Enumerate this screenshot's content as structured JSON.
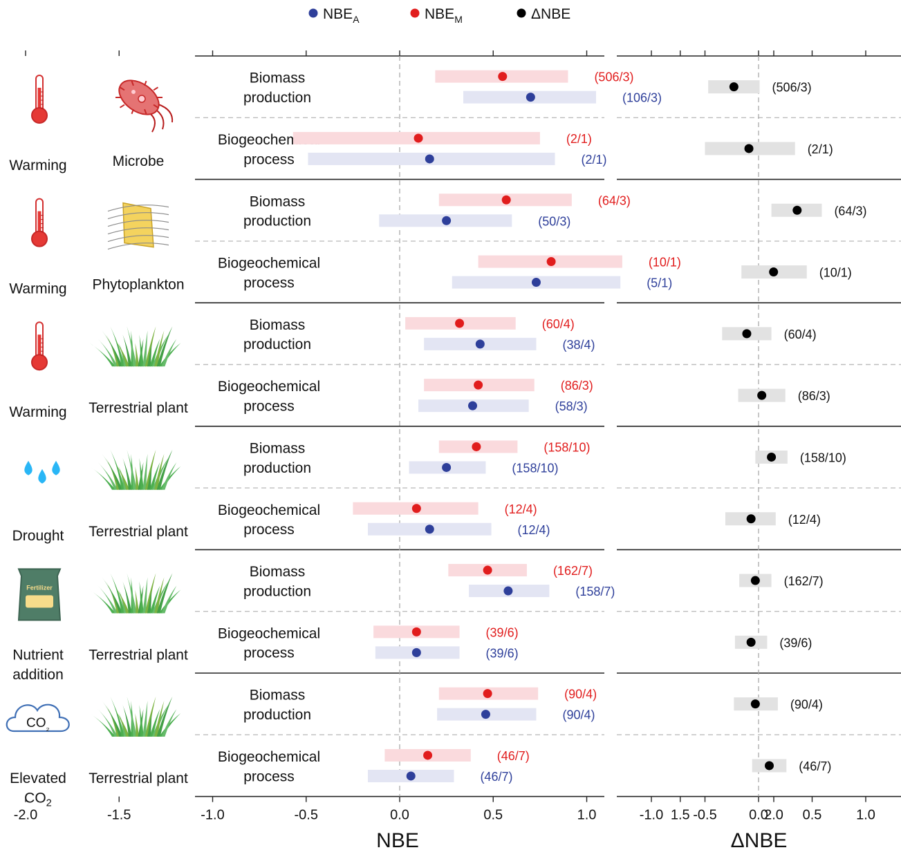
{
  "legend": {
    "items": [
      {
        "base": "NBE",
        "sub": "A",
        "color": "#2e3f9a"
      },
      {
        "base": "NBE",
        "sub": "M",
        "color": "#e11d1d"
      },
      {
        "base": "ΔNBE",
        "sub": "",
        "color": "#000000"
      }
    ]
  },
  "groups": [
    {
      "stressor_lines": [
        "Warming"
      ],
      "organism_lines": [
        "Microbe"
      ],
      "stressor_icon": "thermometer-icon",
      "organism_icon": "bacterium-icon"
    },
    {
      "stressor_lines": [
        "Warming"
      ],
      "organism_lines": [
        "Phytoplankton"
      ],
      "stressor_icon": "thermometer-icon",
      "organism_icon": "phytoplankton-icon"
    },
    {
      "stressor_lines": [
        "Warming"
      ],
      "organism_lines": [
        "Terrestrial plant"
      ],
      "stressor_icon": "thermometer-icon",
      "organism_icon": "grass-icon"
    },
    {
      "stressor_lines": [
        "Drought"
      ],
      "organism_lines": [
        "Terrestrial plant"
      ],
      "stressor_icon": "water-drops-icon",
      "organism_icon": "grass-icon"
    },
    {
      "stressor_lines": [
        "Nutrient",
        "addition"
      ],
      "organism_lines": [
        "Terrestrial plant"
      ],
      "stressor_icon": "fertilizer-bag-icon",
      "organism_icon": "grass-icon",
      "stressor_icon_text": "Fertilizer"
    },
    {
      "stressor_lines": [
        "Elevated",
        "CO₂"
      ],
      "organism_lines": [
        "Terrestrial plant"
      ],
      "stressor_icon": "co2-cloud-icon",
      "organism_icon": "grass-icon",
      "stressor_icon_text": "CO₂"
    }
  ],
  "row_types": [
    [
      "Biomass",
      "production"
    ],
    [
      "Biogeochemical",
      "process"
    ]
  ],
  "chart_data": [
    {
      "type": "scatter",
      "subtype": "dot-and-interval",
      "xlabel": "NBE",
      "xlim": [
        -2.2,
        2.2
      ],
      "xticks": [
        -2.0,
        -1.5,
        -1.0,
        -0.5,
        0.0,
        0.5,
        1.0,
        1.5,
        2.0
      ],
      "xtick_labels": [
        "-2.0",
        "-1.5",
        "-1.0",
        "-0.5",
        "0.0",
        "0.5",
        "1.0",
        "1.5",
        "2.0"
      ],
      "series": [
        {
          "name": "NBEM",
          "color": "#e11d1d",
          "band_color": "#fadadd",
          "points": [
            {
              "est": 0.55,
              "lo": 0.19,
              "hi": 0.9,
              "label": "(506/3)"
            },
            {
              "est": 0.1,
              "lo": -0.57,
              "hi": 0.75,
              "label": "(2/1)"
            },
            {
              "est": 0.57,
              "lo": 0.21,
              "hi": 0.92,
              "label": "(64/3)"
            },
            {
              "est": 0.81,
              "lo": 0.42,
              "hi": 1.19,
              "label": "(10/1)"
            },
            {
              "est": 0.32,
              "lo": 0.03,
              "hi": 0.62,
              "label": "(60/4)"
            },
            {
              "est": 0.42,
              "lo": 0.13,
              "hi": 0.72,
              "label": "(86/3)"
            },
            {
              "est": 0.41,
              "lo": 0.21,
              "hi": 0.63,
              "label": "(158/10)"
            },
            {
              "est": 0.09,
              "lo": -0.25,
              "hi": 0.42,
              "label": "(12/4)"
            },
            {
              "est": 0.47,
              "lo": 0.26,
              "hi": 0.68,
              "label": "(162/7)"
            },
            {
              "est": 0.09,
              "lo": -0.14,
              "hi": 0.32,
              "label": "(39/6)"
            },
            {
              "est": 0.47,
              "lo": 0.21,
              "hi": 0.74,
              "label": "(90/4)"
            },
            {
              "est": 0.15,
              "lo": -0.08,
              "hi": 0.38,
              "label": "(46/7)"
            }
          ]
        },
        {
          "name": "NBEA",
          "color": "#2e3f9a",
          "band_color": "#e3e5f3",
          "points": [
            {
              "est": 0.7,
              "lo": 0.34,
              "hi": 1.05,
              "label": "(106/3)"
            },
            {
              "est": 0.16,
              "lo": -0.49,
              "hi": 0.83,
              "label": "(2/1)"
            },
            {
              "est": 0.25,
              "lo": -0.11,
              "hi": 0.6,
              "label": "(50/3)"
            },
            {
              "est": 0.73,
              "lo": 0.28,
              "hi": 1.18,
              "label": "(5/1)"
            },
            {
              "est": 0.43,
              "lo": 0.13,
              "hi": 0.73,
              "label": "(38/4)"
            },
            {
              "est": 0.39,
              "lo": 0.1,
              "hi": 0.69,
              "label": "(58/3)"
            },
            {
              "est": 0.25,
              "lo": 0.05,
              "hi": 0.46,
              "label": "(158/10)"
            },
            {
              "est": 0.16,
              "lo": -0.17,
              "hi": 0.49,
              "label": "(12/4)"
            },
            {
              "est": 0.58,
              "lo": 0.37,
              "hi": 0.8,
              "label": "(158/7)"
            },
            {
              "est": 0.09,
              "lo": -0.13,
              "hi": 0.32,
              "label": "(39/6)"
            },
            {
              "est": 0.46,
              "lo": 0.2,
              "hi": 0.73,
              "label": "(90/4)"
            },
            {
              "est": 0.06,
              "lo": -0.17,
              "hi": 0.29,
              "label": "(46/7)"
            }
          ]
        }
      ]
    },
    {
      "type": "scatter",
      "subtype": "dot-and-interval",
      "xlabel": "ΔNBE",
      "xlim": [
        -1.33,
        1.33
      ],
      "xticks": [
        -1.0,
        -0.5,
        0.0,
        0.5,
        1.0
      ],
      "xtick_labels": [
        "-1.0",
        "-0.5",
        "0.0",
        "0.5",
        "1.0"
      ],
      "series": [
        {
          "name": "ΔNBE",
          "color": "#000000",
          "band_color": "#e2e2e2",
          "points": [
            {
              "est": -0.23,
              "lo": -0.47,
              "hi": 0.01,
              "label": "(506/3)"
            },
            {
              "est": -0.09,
              "lo": -0.5,
              "hi": 0.34,
              "label": "(2/1)"
            },
            {
              "est": 0.36,
              "lo": 0.12,
              "hi": 0.59,
              "label": "(64/3)"
            },
            {
              "est": 0.14,
              "lo": -0.16,
              "hi": 0.45,
              "label": "(10/1)"
            },
            {
              "est": -0.11,
              "lo": -0.34,
              "hi": 0.12,
              "label": "(60/4)"
            },
            {
              "est": 0.03,
              "lo": -0.19,
              "hi": 0.25,
              "label": "(86/3)"
            },
            {
              "est": 0.12,
              "lo": -0.03,
              "hi": 0.27,
              "label": "(158/10)"
            },
            {
              "est": -0.07,
              "lo": -0.31,
              "hi": 0.16,
              "label": "(12/4)"
            },
            {
              "est": -0.03,
              "lo": -0.18,
              "hi": 0.12,
              "label": "(162/7)"
            },
            {
              "est": -0.07,
              "lo": -0.22,
              "hi": 0.08,
              "label": "(39/6)"
            },
            {
              "est": -0.03,
              "lo": -0.23,
              "hi": 0.18,
              "label": "(90/4)"
            },
            {
              "est": 0.1,
              "lo": -0.06,
              "hi": 0.26,
              "label": "(46/7)"
            }
          ]
        }
      ]
    }
  ]
}
